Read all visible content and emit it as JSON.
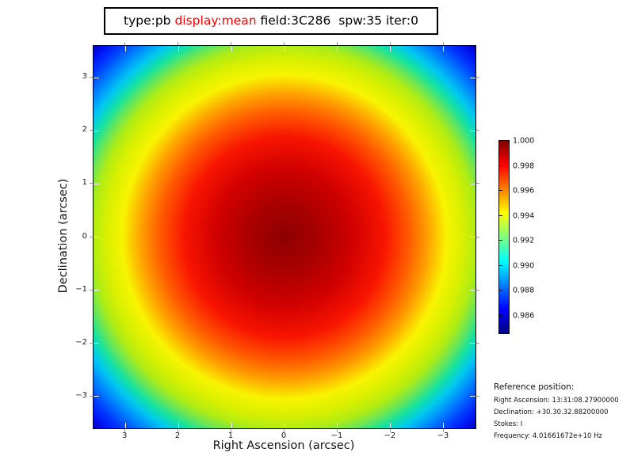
{
  "title": {
    "segments": [
      {
        "text": "type:pb ",
        "color": "#000000"
      },
      {
        "text": "display:mean",
        "color": "#ff0000"
      },
      {
        "text": " field:3C286  spw:35 iter:0",
        "color": "#000000"
      }
    ]
  },
  "plot": {
    "xlabel": "Right Ascension (arcsec)",
    "ylabel": "Declination (arcsec)",
    "x_ticks": [
      3,
      2,
      1,
      0,
      -1,
      -2,
      -3
    ],
    "y_ticks": [
      3,
      2,
      1,
      0,
      -1,
      -2,
      -3
    ],
    "x_range_left_to_right": [
      3.6,
      -3.6
    ],
    "y_range_bottom_to_top": [
      -3.6,
      3.6
    ],
    "radial_gradient_stops": [
      [
        "#8e0000",
        0
      ],
      [
        "#a80000",
        12
      ],
      [
        "#cf0000",
        25
      ],
      [
        "#f81400",
        37
      ],
      [
        "#ff5a00",
        46
      ],
      [
        "#ffa000",
        53
      ],
      [
        "#f8f400",
        60
      ],
      [
        "#d8f000",
        66
      ],
      [
        "#b0ec14",
        71
      ],
      [
        "#6ae656",
        75
      ],
      [
        "#14e2a2",
        79
      ],
      [
        "#00c8f0",
        83
      ],
      [
        "#0080ff",
        88
      ],
      [
        "#0038ff",
        93
      ],
      [
        "#0010f0",
        97
      ],
      [
        "#0000b4",
        100
      ]
    ]
  },
  "colorbar": {
    "vmax": 1.0,
    "vmin": 0.9846,
    "tick_values": [
      1.0,
      0.998,
      0.996,
      0.994,
      0.992,
      0.99,
      0.988,
      0.986
    ],
    "gradient_stops": [
      [
        "#7f0000",
        0
      ],
      [
        "#ff0000",
        12.5
      ],
      [
        "#ffff00",
        37.5
      ],
      [
        "#00ffff",
        62.5
      ],
      [
        "#0000ff",
        87.5
      ],
      [
        "#000080",
        100
      ]
    ]
  },
  "reference": {
    "heading": "Reference position:",
    "lines": [
      "Right Ascension: 13:31:08.27900000",
      "Declination: +30.30.32.88200000",
      "Stokes: I",
      "Frequency: 4.01661672e+10 Hz"
    ]
  },
  "chart_data": {
    "type": "heatmap",
    "title": "type:pb display:mean field:3C286 spw:35 iter:0",
    "xlabel": "Right Ascension (arcsec)",
    "ylabel": "Declination (arcsec)",
    "xlim": [
      3.6,
      -3.6
    ],
    "ylim": [
      -3.6,
      3.6
    ],
    "x_ticks": [
      3,
      2,
      1,
      0,
      -1,
      -2,
      -3
    ],
    "y_ticks": [
      3,
      2,
      1,
      0,
      -1,
      -2,
      -3
    ],
    "colormap": "jet",
    "colorbar_ticks": [
      1.0,
      0.998,
      0.996,
      0.994,
      0.992,
      0.99,
      0.988,
      0.986
    ],
    "colorbar_range": [
      0.9846,
      1.0
    ],
    "pattern": "radially symmetric primary-beam (Gaussian) response centered at (0,0), value 1.000 at center falling to ~0.9845 at field corners",
    "radial_profile_estimate": [
      {
        "r_arcsec": 0.0,
        "value": 1.0
      },
      {
        "r_arcsec": 1.0,
        "value": 0.9994
      },
      {
        "r_arcsec": 2.0,
        "value": 0.9976
      },
      {
        "r_arcsec": 3.0,
        "value": 0.9945
      },
      {
        "r_arcsec": 3.6,
        "value": 0.9921
      },
      {
        "r_arcsec": 5.09,
        "value": 0.9845
      }
    ],
    "legend_position": "right colorbar",
    "grid": false
  }
}
